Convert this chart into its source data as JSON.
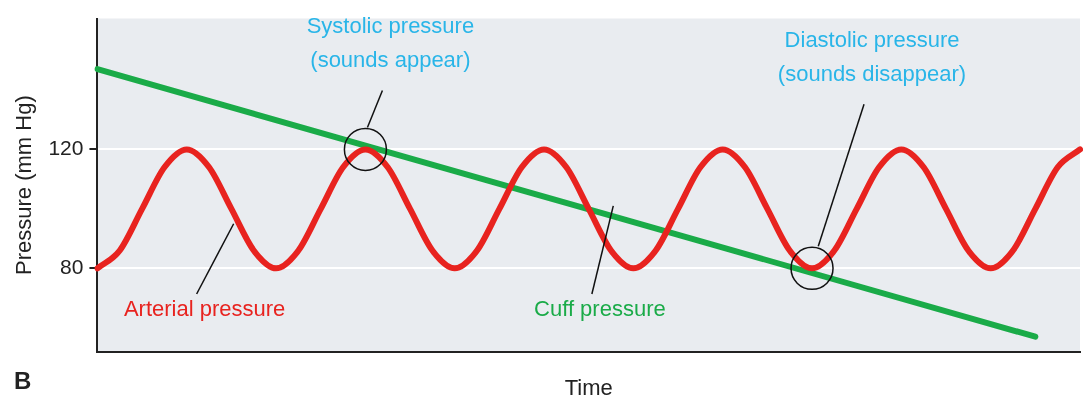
{
  "chart_data": {
    "type": "line",
    "xlabel": "Time",
    "ylabel": "Pressure (mm Hg)",
    "categories": [
      null,
      null,
      null,
      null,
      null,
      null,
      null,
      null,
      null,
      null,
      null,
      null,
      null,
      null,
      null,
      null,
      null,
      null,
      null,
      null,
      null,
      null,
      null,
      null,
      null,
      null,
      null,
      null,
      null,
      null,
      null,
      null,
      null,
      null,
      null,
      null,
      null,
      null,
      null,
      null,
      null,
      null,
      null,
      null,
      null
    ],
    "ylim": [
      52,
      164
    ],
    "yticks": [
      80,
      120
    ],
    "tick_labels": "y",
    "grid": "y",
    "legend": false,
    "marker": "none",
    "line_style": "solid",
    "series": [
      {
        "name": "Arterial pressure",
        "color": "#e8231f",
        "values": [
          80,
          86,
          100,
          114,
          120,
          114,
          100,
          86,
          80,
          86,
          100,
          114,
          120,
          114,
          100,
          86,
          80,
          86,
          100,
          114,
          120,
          114,
          100,
          86,
          80,
          86,
          100,
          114,
          120,
          114,
          100,
          86,
          80,
          86,
          100,
          114,
          120,
          114,
          100,
          86,
          80,
          86,
          100,
          114,
          120
        ]
      },
      {
        "name": "Cuff pressure",
        "color": "#1aab48",
        "values": [
          147,
          null,
          null,
          null,
          null,
          null,
          null,
          null,
          null,
          null,
          null,
          null,
          null,
          null,
          null,
          null,
          null,
          null,
          null,
          null,
          null,
          null,
          null,
          null,
          null,
          null,
          null,
          null,
          null,
          null,
          null,
          null,
          null,
          null,
          null,
          null,
          null,
          null,
          null,
          null,
          null,
          null,
          57,
          null,
          null
        ]
      }
    ],
    "annotations": [
      "Systolic pressure\n(sounds appear)",
      "Diastolic pressure\n(sounds disappear)",
      "B"
    ]
  }
}
